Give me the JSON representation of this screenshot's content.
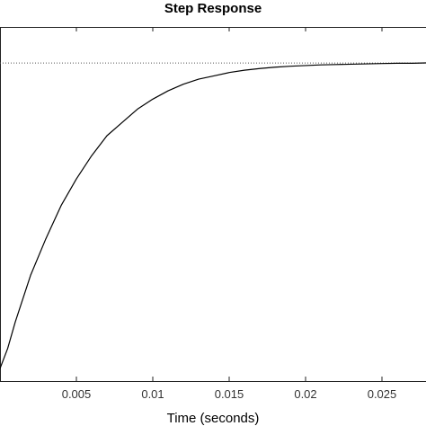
{
  "chart_data": {
    "type": "line",
    "title": "Step Response",
    "xlabel": "Time (seconds)",
    "ylabel": "",
    "xlim": [
      0,
      0.028
    ],
    "ylim": [
      0,
      1.0
    ],
    "x_ticks": [
      "0.005",
      "0.01",
      "0.015",
      "0.02",
      "0.025"
    ],
    "x_tick_values": [
      0.005,
      0.01,
      0.015,
      0.02,
      0.025
    ],
    "steady_state": 0.92,
    "grid": false,
    "series": [
      {
        "x": [
          0,
          0.0005,
          0.001,
          0.0015,
          0.002,
          0.003,
          0.004,
          0.005,
          0.006,
          0.007,
          0.008,
          0.009,
          0.01,
          0.011,
          0.012,
          0.013,
          0.014,
          0.015,
          0.016,
          0.017,
          0.018,
          0.019,
          0.02,
          0.021,
          0.022,
          0.023,
          0.024,
          0.025,
          0.026,
          0.027,
          0.028
        ],
        "y": [
          0.0,
          0.06,
          0.14,
          0.21,
          0.28,
          0.39,
          0.49,
          0.57,
          0.64,
          0.7,
          0.74,
          0.78,
          0.81,
          0.835,
          0.855,
          0.87,
          0.88,
          0.89,
          0.897,
          0.902,
          0.906,
          0.909,
          0.911,
          0.913,
          0.914,
          0.915,
          0.916,
          0.917,
          0.918,
          0.918,
          0.919
        ]
      }
    ],
    "colors": {
      "line": "#000000",
      "reference": "#555555",
      "axis": "#222222"
    }
  }
}
